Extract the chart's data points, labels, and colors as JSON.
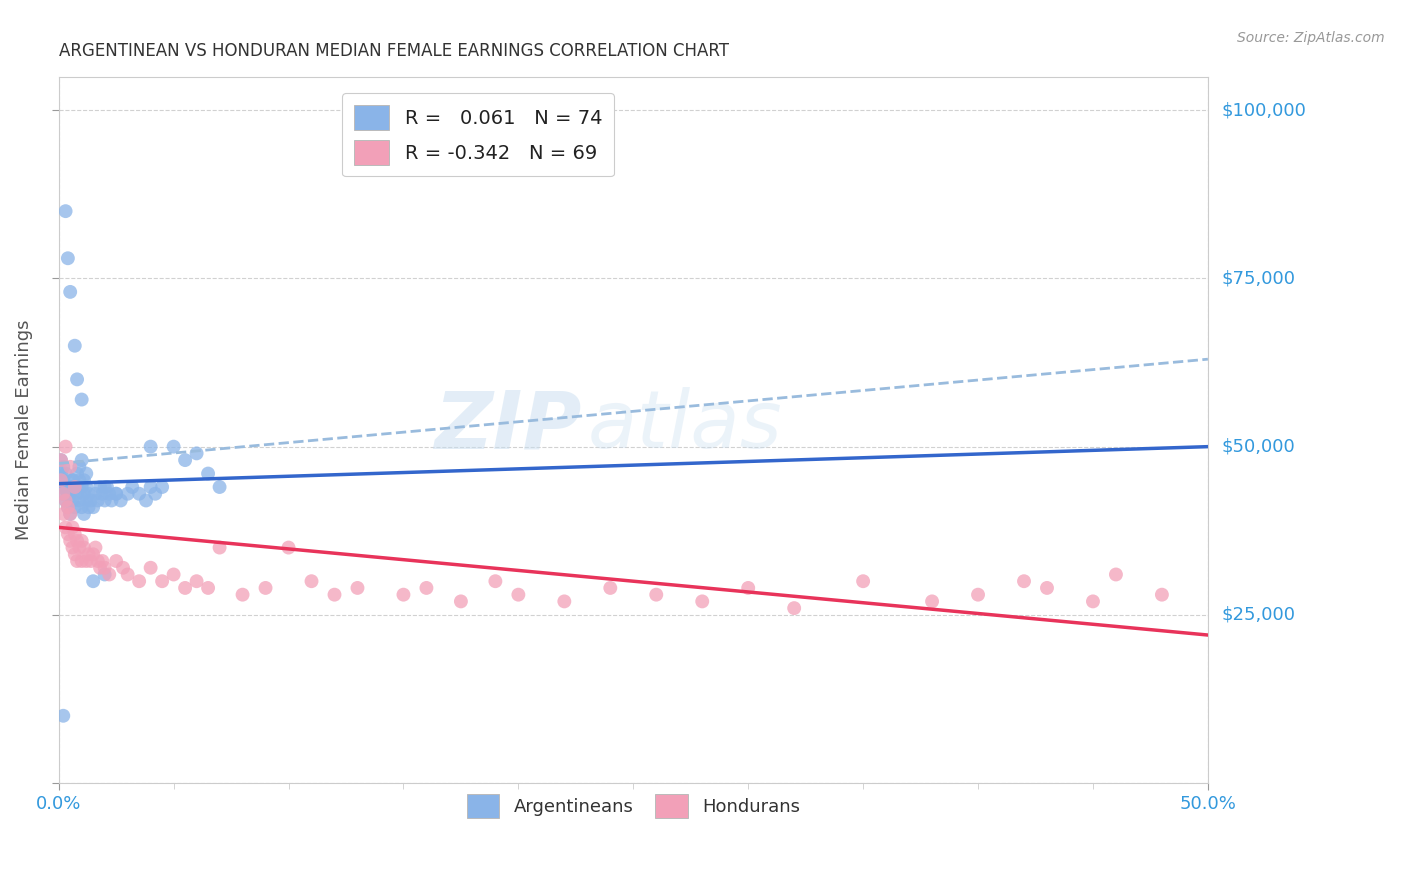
{
  "title": "ARGENTINEAN VS HONDURAN MEDIAN FEMALE EARNINGS CORRELATION CHART",
  "source": "Source: ZipAtlas.com",
  "ylabel": "Median Female Earnings",
  "background_color": "#ffffff",
  "watermark_text": "ZIP",
  "watermark_text2": "atlas",
  "legend_R_arg": " 0.061",
  "legend_N_arg": "74",
  "legend_R_hon": "-0.342",
  "legend_N_hon": "69",
  "arg_color": "#8ab4e8",
  "hon_color": "#f2a0b8",
  "arg_line_color": "#3366cc",
  "hon_line_color": "#e8335a",
  "dashed_line_color": "#99bbdd",
  "title_color": "#333333",
  "axis_label_color": "#555555",
  "tick_color": "#3399dd",
  "grid_color": "#cccccc",
  "xlim": [
    0.0,
    0.5
  ],
  "ylim": [
    0,
    105000
  ],
  "figsize": [
    14.06,
    8.92
  ],
  "dpi": 100,
  "arg_x": [
    0.001,
    0.001,
    0.001,
    0.002,
    0.002,
    0.002,
    0.003,
    0.003,
    0.003,
    0.003,
    0.004,
    0.004,
    0.004,
    0.005,
    0.005,
    0.005,
    0.006,
    0.006,
    0.007,
    0.007,
    0.007,
    0.008,
    0.008,
    0.009,
    0.009,
    0.01,
    0.01,
    0.01,
    0.011,
    0.011,
    0.012,
    0.012,
    0.013,
    0.013,
    0.014,
    0.015,
    0.016,
    0.017,
    0.018,
    0.019,
    0.02,
    0.021,
    0.022,
    0.023,
    0.025,
    0.027,
    0.03,
    0.032,
    0.035,
    0.038,
    0.04,
    0.042,
    0.045,
    0.05,
    0.055,
    0.06,
    0.065,
    0.07,
    0.008,
    0.009,
    0.01,
    0.011,
    0.012,
    0.003,
    0.004,
    0.005,
    0.006,
    0.007,
    0.02,
    0.025,
    0.002,
    0.015,
    0.02,
    0.04
  ],
  "arg_y": [
    44000,
    46000,
    48000,
    43000,
    45000,
    47000,
    42000,
    44000,
    46000,
    85000,
    41000,
    43000,
    78000,
    40000,
    43000,
    73000,
    42000,
    45000,
    41000,
    44000,
    65000,
    43000,
    60000,
    42000,
    45000,
    41000,
    44000,
    57000,
    40000,
    43000,
    42000,
    44000,
    41000,
    43000,
    42000,
    41000,
    43000,
    42000,
    44000,
    43000,
    42000,
    44000,
    43000,
    42000,
    43000,
    42000,
    43000,
    44000,
    43000,
    42000,
    44000,
    43000,
    44000,
    50000,
    48000,
    49000,
    46000,
    44000,
    46000,
    47000,
    48000,
    45000,
    46000,
    44000,
    43000,
    44000,
    45000,
    44000,
    44000,
    43000,
    10000,
    30000,
    31000,
    50000
  ],
  "hon_x": [
    0.001,
    0.001,
    0.002,
    0.002,
    0.003,
    0.003,
    0.004,
    0.004,
    0.005,
    0.005,
    0.006,
    0.006,
    0.007,
    0.007,
    0.008,
    0.008,
    0.009,
    0.01,
    0.01,
    0.011,
    0.012,
    0.013,
    0.014,
    0.015,
    0.016,
    0.017,
    0.018,
    0.019,
    0.02,
    0.022,
    0.025,
    0.028,
    0.03,
    0.035,
    0.04,
    0.045,
    0.05,
    0.055,
    0.06,
    0.065,
    0.07,
    0.08,
    0.09,
    0.1,
    0.11,
    0.12,
    0.13,
    0.15,
    0.16,
    0.175,
    0.19,
    0.2,
    0.22,
    0.24,
    0.26,
    0.28,
    0.3,
    0.32,
    0.35,
    0.38,
    0.4,
    0.42,
    0.45,
    0.46,
    0.48,
    0.003,
    0.005,
    0.007,
    0.43
  ],
  "hon_y": [
    45000,
    48000,
    40000,
    43000,
    38000,
    42000,
    37000,
    41000,
    36000,
    40000,
    35000,
    38000,
    34000,
    37000,
    33000,
    36000,
    35000,
    33000,
    36000,
    35000,
    33000,
    34000,
    33000,
    34000,
    35000,
    33000,
    32000,
    33000,
    32000,
    31000,
    33000,
    32000,
    31000,
    30000,
    32000,
    30000,
    31000,
    29000,
    30000,
    29000,
    35000,
    28000,
    29000,
    35000,
    30000,
    28000,
    29000,
    28000,
    29000,
    27000,
    30000,
    28000,
    27000,
    29000,
    28000,
    27000,
    29000,
    26000,
    30000,
    27000,
    28000,
    30000,
    27000,
    31000,
    28000,
    50000,
    47000,
    44000,
    29000
  ],
  "arg_line_x0": 0.0,
  "arg_line_x1": 0.5,
  "arg_line_y0": 44500,
  "arg_line_y1": 50000,
  "hon_line_x0": 0.0,
  "hon_line_x1": 0.5,
  "hon_line_y0": 38000,
  "hon_line_y1": 22000,
  "dash_line_x0": 0.0,
  "dash_line_x1": 0.5,
  "dash_line_y0": 47500,
  "dash_line_y1": 63000
}
